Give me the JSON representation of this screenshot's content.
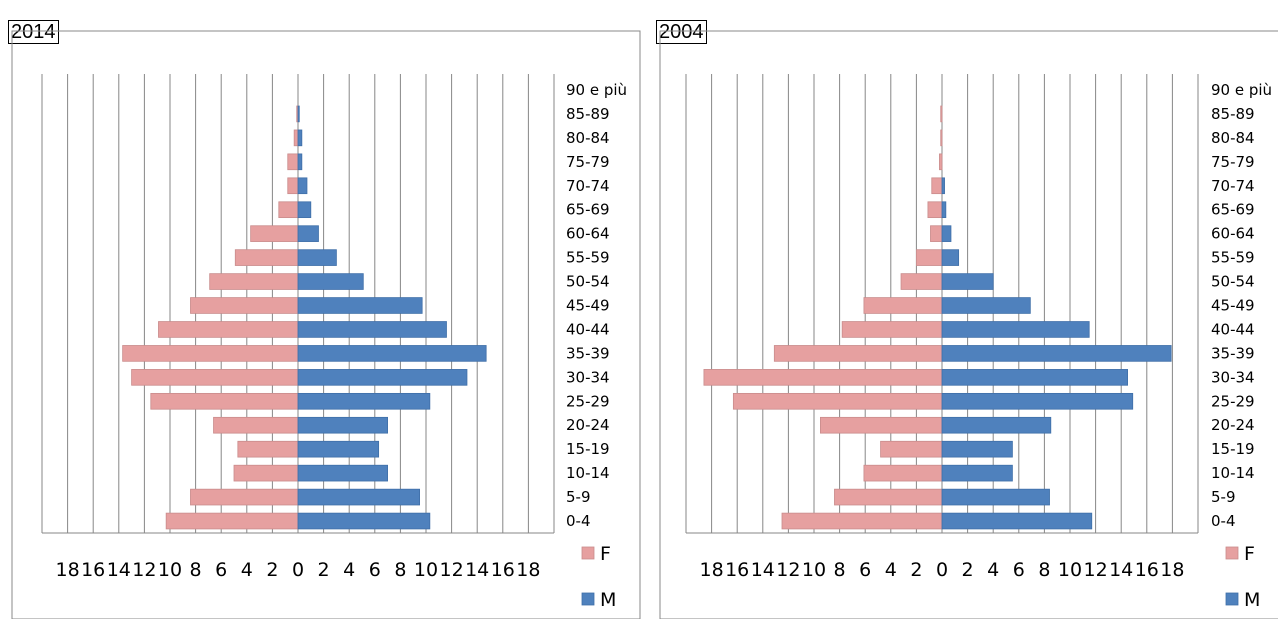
{
  "chart_data": [
    {
      "type": "bar",
      "title": "2014",
      "categories": [
        "0-4",
        "5-9",
        "10-14",
        "15-19",
        "20-24",
        "25-29",
        "30-34",
        "35-39",
        "40-44",
        "45-49",
        "50-54",
        "55-59",
        "60-64",
        "65-69",
        "70-74",
        "75-79",
        "80-84",
        "85-89",
        "90 e più"
      ],
      "series": [
        {
          "name": "F",
          "color": "#E6A0A0",
          "values": [
            -10.3,
            -8.4,
            -5.0,
            -4.7,
            -6.6,
            -11.5,
            -13.0,
            -13.7,
            -10.9,
            -8.4,
            -6.9,
            -4.9,
            -3.7,
            -1.5,
            -0.8,
            -0.8,
            -0.3,
            -0.1,
            0
          ]
        },
        {
          "name": "M",
          "color": "#4F81BD",
          "values": [
            10.3,
            9.5,
            7.0,
            6.3,
            7.0,
            10.3,
            13.2,
            14.7,
            11.6,
            9.7,
            5.1,
            3.0,
            1.6,
            1.0,
            0.7,
            0.3,
            0.3,
            0.1,
            0
          ]
        }
      ],
      "xlim": [
        -20,
        20
      ],
      "xticks": [
        "20",
        "18",
        "16",
        "14",
        "12",
        "10",
        "8",
        "6",
        "4",
        "2",
        "0",
        "2",
        "4",
        "6",
        "8",
        "10",
        "12",
        "14",
        "16",
        "18",
        "20"
      ],
      "legend": "right"
    },
    {
      "type": "bar",
      "title": "2004",
      "categories": [
        "0-4",
        "5-9",
        "10-14",
        "15-19",
        "20-24",
        "25-29",
        "30-34",
        "35-39",
        "40-44",
        "45-49",
        "50-54",
        "55-59",
        "60-64",
        "65-69",
        "70-74",
        "75-79",
        "80-84",
        "85-89",
        "90 e più"
      ],
      "series": [
        {
          "name": "F",
          "color": "#E6A0A0",
          "values": [
            -12.5,
            -8.4,
            -6.1,
            -4.8,
            -9.5,
            -16.3,
            -18.6,
            -13.1,
            -7.8,
            -6.1,
            -3.2,
            -2.0,
            -0.9,
            -1.1,
            -0.8,
            -0.2,
            -0.1,
            -0.1,
            0
          ]
        },
        {
          "name": "M",
          "color": "#4F81BD",
          "values": [
            11.7,
            8.4,
            5.5,
            5.5,
            8.5,
            14.9,
            14.5,
            17.9,
            11.5,
            6.9,
            4.0,
            1.3,
            0.7,
            0.3,
            0.2,
            0.0,
            0.0,
            0.0,
            0
          ]
        }
      ],
      "xlim": [
        -20,
        20
      ],
      "xticks": [
        "20",
        "18",
        "16",
        "14",
        "12",
        "10",
        "8",
        "6",
        "4",
        "2",
        "0",
        "2",
        "4",
        "6",
        "8",
        "10",
        "12",
        "14",
        "16",
        "18",
        "20"
      ],
      "legend": "right"
    }
  ]
}
